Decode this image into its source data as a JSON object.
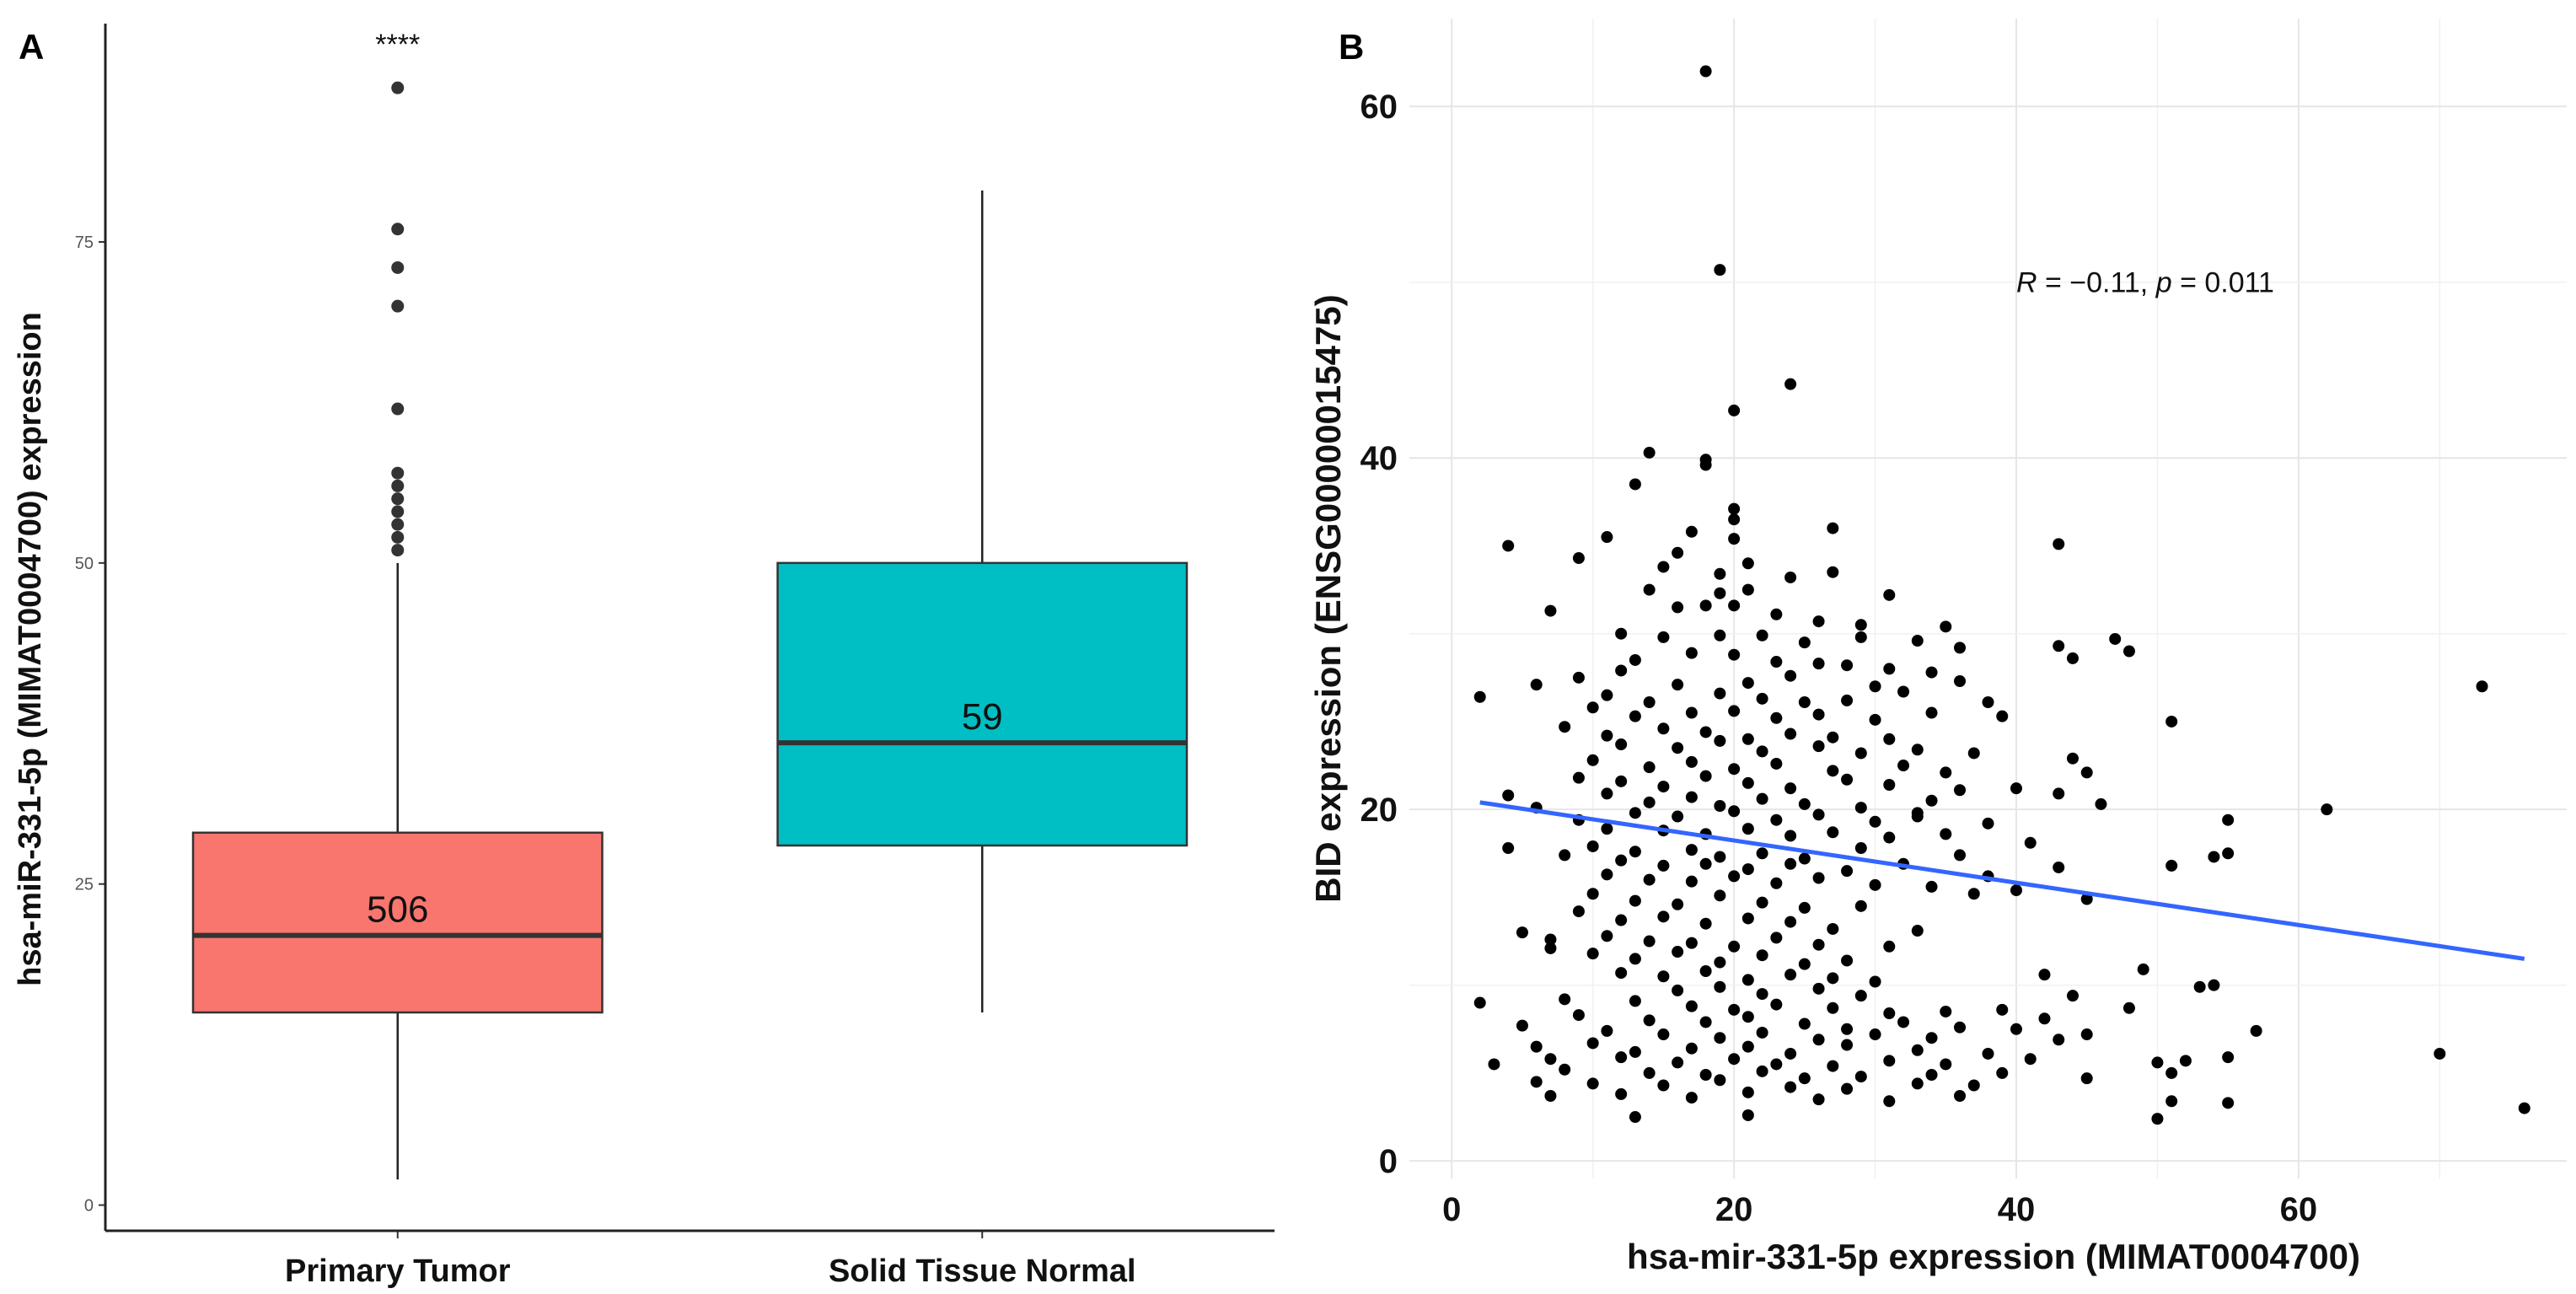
{
  "chart_data": [
    {
      "panel": "A",
      "type": "box",
      "categories": [
        "Primary Tumor",
        "Solid Tissue Normal"
      ],
      "ylabel": "hsa-miR-331-5p (MIMAT0004700) expression",
      "xlabel": "",
      "ylim": [
        -2,
        92
      ],
      "yticks": [
        0,
        25,
        50,
        75
      ],
      "grid": false,
      "significance": "****",
      "boxes": [
        {
          "name": "Primary Tumor",
          "count_label": "506",
          "color": "#F8766D",
          "whisker_low": 2,
          "q1": 15,
          "median": 21,
          "q3": 29,
          "whisker_high": 50,
          "outliers": [
            51,
            52,
            53,
            54,
            55,
            56,
            57,
            62,
            70,
            73,
            76,
            87
          ]
        },
        {
          "name": "Solid Tissue Normal",
          "count_label": "59",
          "color": "#00BFC4",
          "whisker_low": 15,
          "q1": 28,
          "median": 36,
          "q3": 50,
          "whisker_high": 79,
          "outliers": []
        }
      ]
    },
    {
      "panel": "B",
      "type": "scatter",
      "xlabel": "hsa-mir-331-5p expression (MIMAT0004700)",
      "ylabel": "BID expression (ENSG00000015475)",
      "xlim": [
        -3,
        79
      ],
      "ylim": [
        -1,
        65
      ],
      "xticks": [
        0,
        20,
        40,
        60
      ],
      "yticks": [
        0,
        20,
        40,
        60
      ],
      "grid": true,
      "annotation": {
        "r_symbol": "R",
        "r_text": " = −0.11, ",
        "p_symbol": "p",
        "p_text": " = 0.011",
        "x": 40,
        "y": 50
      },
      "regression": {
        "x1": 2,
        "y1": 20.4,
        "x2": 76,
        "y2": 11.5,
        "color": "#3366FF"
      },
      "points": [
        [
          18,
          62
        ],
        [
          19,
          50.7
        ],
        [
          24,
          44.2
        ],
        [
          20,
          42.7
        ],
        [
          14,
          40.3
        ],
        [
          18,
          39.9
        ],
        [
          18,
          39.6
        ],
        [
          13,
          38.5
        ],
        [
          20,
          37.1
        ],
        [
          20,
          36.5
        ],
        [
          4,
          35
        ],
        [
          11,
          35.5
        ],
        [
          17,
          35.8
        ],
        [
          20,
          35.4
        ],
        [
          27,
          36
        ],
        [
          43,
          35.1
        ],
        [
          16,
          34.6
        ],
        [
          21,
          34
        ],
        [
          15,
          33.8
        ],
        [
          19,
          33.4
        ],
        [
          24,
          33.2
        ],
        [
          27,
          33.5
        ],
        [
          9,
          34.3
        ],
        [
          14,
          32.5
        ],
        [
          19,
          32.3
        ],
        [
          21,
          32.5
        ],
        [
          31,
          32.2
        ],
        [
          7,
          31.3
        ],
        [
          16,
          31.5
        ],
        [
          18,
          31.6
        ],
        [
          20,
          31.6
        ],
        [
          23,
          31.1
        ],
        [
          26,
          30.7
        ],
        [
          29,
          30.5
        ],
        [
          35,
          30.4
        ],
        [
          12,
          30
        ],
        [
          15,
          29.8
        ],
        [
          19,
          29.9
        ],
        [
          22,
          29.9
        ],
        [
          25,
          29.5
        ],
        [
          29,
          29.8
        ],
        [
          33,
          29.6
        ],
        [
          36,
          29.2
        ],
        [
          43,
          29.3
        ],
        [
          44,
          28.6
        ],
        [
          47,
          29.7
        ],
        [
          48,
          29
        ],
        [
          13,
          28.5
        ],
        [
          17,
          28.9
        ],
        [
          20,
          28.8
        ],
        [
          23,
          28.4
        ],
        [
          26,
          28.3
        ],
        [
          28,
          28.2
        ],
        [
          31,
          28
        ],
        [
          34,
          27.8
        ],
        [
          2,
          26.4
        ],
        [
          9,
          27.5
        ],
        [
          12,
          27.9
        ],
        [
          16,
          27.1
        ],
        [
          21,
          27.2
        ],
        [
          24,
          27.6
        ],
        [
          30,
          27
        ],
        [
          36,
          27.3
        ],
        [
          6,
          27.1
        ],
        [
          11,
          26.5
        ],
        [
          14,
          26.1
        ],
        [
          19,
          26.6
        ],
        [
          22,
          26.3
        ],
        [
          25,
          26.1
        ],
        [
          28,
          26.2
        ],
        [
          32,
          26.7
        ],
        [
          38,
          26.1
        ],
        [
          73,
          27
        ],
        [
          10,
          25.8
        ],
        [
          13,
          25.3
        ],
        [
          17,
          25.5
        ],
        [
          20,
          25.6
        ],
        [
          23,
          25.2
        ],
        [
          26,
          25.4
        ],
        [
          30,
          25.1
        ],
        [
          34,
          25.5
        ],
        [
          39,
          25.3
        ],
        [
          51,
          25
        ],
        [
          8,
          24.7
        ],
        [
          11,
          24.2
        ],
        [
          15,
          24.6
        ],
        [
          18,
          24.4
        ],
        [
          21,
          24
        ],
        [
          24,
          24.3
        ],
        [
          27,
          24.1
        ],
        [
          31,
          24
        ],
        [
          12,
          23.7
        ],
        [
          16,
          23.5
        ],
        [
          19,
          23.9
        ],
        [
          22,
          23.3
        ],
        [
          26,
          23.6
        ],
        [
          29,
          23.2
        ],
        [
          33,
          23.4
        ],
        [
          37,
          23.2
        ],
        [
          44,
          22.9
        ],
        [
          10,
          22.8
        ],
        [
          14,
          22.4
        ],
        [
          17,
          22.7
        ],
        [
          20,
          22.3
        ],
        [
          23,
          22.6
        ],
        [
          27,
          22.2
        ],
        [
          32,
          22.5
        ],
        [
          35,
          22.1
        ],
        [
          45,
          22.1
        ],
        [
          9,
          21.8
        ],
        [
          12,
          21.6
        ],
        [
          15,
          21.3
        ],
        [
          18,
          21.9
        ],
        [
          21,
          21.5
        ],
        [
          24,
          21.2
        ],
        [
          28,
          21.7
        ],
        [
          31,
          21.4
        ],
        [
          36,
          21.1
        ],
        [
          40,
          21.2
        ],
        [
          4,
          20.8
        ],
        [
          11,
          20.9
        ],
        [
          14,
          20.4
        ],
        [
          17,
          20.7
        ],
        [
          19,
          20.2
        ],
        [
          22,
          20.6
        ],
        [
          25,
          20.3
        ],
        [
          29,
          20.1
        ],
        [
          34,
          20.5
        ],
        [
          43,
          20.9
        ],
        [
          62,
          20
        ],
        [
          6,
          20.1
        ],
        [
          13,
          19.8
        ],
        [
          16,
          19.6
        ],
        [
          20,
          19.9
        ],
        [
          23,
          19.4
        ],
        [
          26,
          19.7
        ],
        [
          30,
          19.3
        ],
        [
          33,
          19.8
        ],
        [
          38,
          19.2
        ],
        [
          55,
          19.4
        ],
        [
          9,
          19.4
        ],
        [
          11,
          18.9
        ],
        [
          15,
          18.8
        ],
        [
          18,
          18.6
        ],
        [
          21,
          18.9
        ],
        [
          24,
          18.5
        ],
        [
          27,
          18.7
        ],
        [
          31,
          18.4
        ],
        [
          35,
          18.6
        ],
        [
          4,
          17.8
        ],
        [
          10,
          17.9
        ],
        [
          13,
          17.6
        ],
        [
          17,
          17.7
        ],
        [
          19,
          17.3
        ],
        [
          22,
          17.5
        ],
        [
          25,
          17.2
        ],
        [
          29,
          17.8
        ],
        [
          36,
          17.4
        ],
        [
          54,
          17.3
        ],
        [
          55,
          17.5
        ],
        [
          8,
          17.4
        ],
        [
          12,
          17.1
        ],
        [
          15,
          16.8
        ],
        [
          18,
          16.9
        ],
        [
          21,
          16.6
        ],
        [
          24,
          16.9
        ],
        [
          28,
          16.5
        ],
        [
          32,
          16.9
        ],
        [
          43,
          16.7
        ],
        [
          51,
          16.8
        ],
        [
          11,
          16.3
        ],
        [
          14,
          16
        ],
        [
          17,
          15.9
        ],
        [
          20,
          16.2
        ],
        [
          23,
          15.8
        ],
        [
          26,
          16.1
        ],
        [
          30,
          15.7
        ],
        [
          34,
          15.6
        ],
        [
          40,
          15.4
        ],
        [
          45,
          14.9
        ],
        [
          10,
          15.2
        ],
        [
          13,
          14.8
        ],
        [
          16,
          14.6
        ],
        [
          19,
          15.1
        ],
        [
          22,
          14.7
        ],
        [
          25,
          14.4
        ],
        [
          29,
          14.5
        ],
        [
          37,
          15.2
        ],
        [
          9,
          14.2
        ],
        [
          12,
          13.7
        ],
        [
          15,
          13.9
        ],
        [
          18,
          13.5
        ],
        [
          21,
          13.8
        ],
        [
          24,
          13.6
        ],
        [
          27,
          13.2
        ],
        [
          33,
          13.1
        ],
        [
          5,
          13
        ],
        [
          7,
          12.6
        ],
        [
          11,
          12.8
        ],
        [
          14,
          12.5
        ],
        [
          17,
          12.4
        ],
        [
          20,
          12.2
        ],
        [
          23,
          12.7
        ],
        [
          26,
          12.3
        ],
        [
          31,
          12.2
        ],
        [
          7,
          12.1
        ],
        [
          10,
          11.8
        ],
        [
          13,
          11.5
        ],
        [
          16,
          11.9
        ],
        [
          19,
          11.3
        ],
        [
          22,
          11.7
        ],
        [
          25,
          11.2
        ],
        [
          28,
          11.4
        ],
        [
          42,
          10.6
        ],
        [
          12,
          10.7
        ],
        [
          15,
          10.5
        ],
        [
          18,
          10.8
        ],
        [
          21,
          10.3
        ],
        [
          24,
          10.6
        ],
        [
          27,
          10.4
        ],
        [
          30,
          10.2
        ],
        [
          49,
          10.9
        ],
        [
          16,
          9.7
        ],
        [
          19,
          9.9
        ],
        [
          22,
          9.5
        ],
        [
          26,
          9.8
        ],
        [
          29,
          9.4
        ],
        [
          44,
          9.4
        ],
        [
          2,
          9
        ],
        [
          8,
          9.2
        ],
        [
          13,
          9.1
        ],
        [
          17,
          8.8
        ],
        [
          20,
          8.6
        ],
        [
          23,
          8.9
        ],
        [
          27,
          8.7
        ],
        [
          31,
          8.4
        ],
        [
          35,
          8.5
        ],
        [
          39,
          8.6
        ],
        [
          42,
          8.1
        ],
        [
          54,
          10
        ],
        [
          9,
          8.3
        ],
        [
          14,
          8
        ],
        [
          18,
          7.9
        ],
        [
          21,
          8.2
        ],
        [
          25,
          7.8
        ],
        [
          28,
          7.5
        ],
        [
          32,
          7.9
        ],
        [
          36,
          7.6
        ],
        [
          40,
          7.5
        ],
        [
          5,
          7.7
        ],
        [
          11,
          7.4
        ],
        [
          15,
          7.2
        ],
        [
          19,
          7
        ],
        [
          22,
          7.3
        ],
        [
          26,
          6.9
        ],
        [
          30,
          7.2
        ],
        [
          34,
          7
        ],
        [
          43,
          6.9
        ],
        [
          57,
          7.4
        ],
        [
          6,
          6.5
        ],
        [
          10,
          6.7
        ],
        [
          13,
          6.2
        ],
        [
          17,
          6.4
        ],
        [
          21,
          6.5
        ],
        [
          24,
          6.1
        ],
        [
          28,
          6.6
        ],
        [
          33,
          6.3
        ],
        [
          38,
          6.1
        ],
        [
          70,
          6.1
        ],
        [
          7,
          5.8
        ],
        [
          12,
          5.9
        ],
        [
          16,
          5.6
        ],
        [
          20,
          5.8
        ],
        [
          23,
          5.5
        ],
        [
          27,
          5.4
        ],
        [
          31,
          5.7
        ],
        [
          35,
          5.5
        ],
        [
          41,
          5.8
        ],
        [
          50,
          5.6
        ],
        [
          52,
          5.7
        ],
        [
          55,
          5.9
        ],
        [
          3,
          5.5
        ],
        [
          8,
          5.2
        ],
        [
          14,
          5
        ],
        [
          18,
          4.9
        ],
        [
          22,
          5.1
        ],
        [
          25,
          4.7
        ],
        [
          29,
          4.8
        ],
        [
          34,
          4.9
        ],
        [
          39,
          5
        ],
        [
          51,
          5
        ],
        [
          6,
          4.5
        ],
        [
          10,
          4.4
        ],
        [
          15,
          4.3
        ],
        [
          19,
          4.6
        ],
        [
          24,
          4.2
        ],
        [
          28,
          4.1
        ],
        [
          33,
          4.4
        ],
        [
          37,
          4.3
        ],
        [
          45,
          4.7
        ],
        [
          7,
          3.7
        ],
        [
          12,
          3.8
        ],
        [
          17,
          3.6
        ],
        [
          21,
          3.9
        ],
        [
          26,
          3.5
        ],
        [
          31,
          3.4
        ],
        [
          36,
          3.7
        ],
        [
          51,
          3.4
        ],
        [
          55,
          3.3
        ],
        [
          13,
          2.5
        ],
        [
          21,
          2.6
        ],
        [
          50,
          2.4
        ],
        [
          76,
          3
        ],
        [
          48,
          8.7
        ],
        [
          45,
          7.2
        ],
        [
          53,
          9.9
        ],
        [
          38,
          16.2
        ],
        [
          41,
          18.1
        ],
        [
          46,
          20.3
        ],
        [
          33,
          19.6
        ]
      ]
    }
  ]
}
